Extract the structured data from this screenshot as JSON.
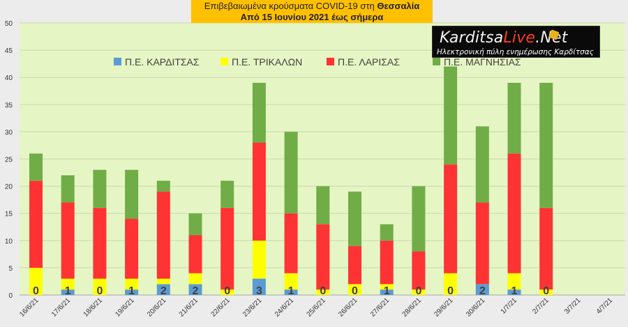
{
  "header": {
    "title_prefix": "Επιβεβαιωμένα κρούσματα COVID-19 στη ",
    "title_region": "Θεσσαλία",
    "subtitle": "Από 15 Ιουνίου 2021 έως σήμερα"
  },
  "logo": {
    "name_part1": "Karditsa",
    "name_part2": "Live",
    "name_part3": ".Net",
    "tagline": "Ηλεκτρονική πύλη ενημέρωσης Καρδίτσας"
  },
  "colors": {
    "Π.Ε. ΚΑΡΔΙΤΣΑΣ": "#5b9bd5",
    "Π.Ε. ΤΡΙΚΑΛΩΝ": "#ffff00",
    "Π.Ε. ΛΑΡΙΣΑΣ": "#ff3333",
    "Π.Ε. ΜΑΓΝΗΣΙΑΣ": "#70ad47",
    "plot_background": "#e6f5c4",
    "page_background": "#ececec",
    "title_background": "#ffc000"
  },
  "chart_data": {
    "type": "bar",
    "stacked": true,
    "ylim": [
      0,
      50
    ],
    "yticks": [
      0,
      5,
      10,
      15,
      20,
      25,
      30,
      35,
      40,
      45,
      50
    ],
    "grid": true,
    "legend_position": "top",
    "categories": [
      "16/6/21",
      "17/6/21",
      "18/6/21",
      "19/6/21",
      "20/6/21",
      "21/6/21",
      "22/6/21",
      "23/6/21",
      "24/6/21",
      "25/6/21",
      "26/6/21",
      "27/6/21",
      "28/6/21",
      "29/6/21",
      "30/6/21",
      "1/7/21",
      "2/7/21",
      "3/7/21",
      "4/7/21"
    ],
    "series": [
      {
        "name": "Π.Ε. ΚΑΡΔΙΤΣΑΣ",
        "values": [
          0,
          1,
          0,
          1,
          2,
          2,
          0,
          3,
          1,
          0,
          0,
          1,
          0,
          0,
          2,
          1,
          0,
          null,
          null
        ]
      },
      {
        "name": "Π.Ε. ΤΡΙΚΑΛΩΝ",
        "values": [
          5,
          2,
          3,
          2,
          1,
          2,
          1,
          7,
          3,
          1,
          2,
          1,
          1,
          4,
          0,
          3,
          1,
          null,
          null
        ]
      },
      {
        "name": "Π.Ε. ΛΑΡΙΣΑΣ",
        "values": [
          16,
          14,
          13,
          11,
          16,
          7,
          15,
          18,
          11,
          12,
          7,
          8,
          7,
          20,
          15,
          22,
          15,
          null,
          null
        ]
      },
      {
        "name": "Π.Ε. ΜΑΓΝΗΣΙΑΣ",
        "values": [
          5,
          5,
          7,
          9,
          2,
          4,
          5,
          11,
          15,
          7,
          10,
          3,
          12,
          18,
          14,
          13,
          23,
          null,
          null
        ]
      }
    ],
    "data_labels": {
      "series": "Π.Ε. ΚΑΡΔΙΤΣΑΣ",
      "values": [
        0,
        1,
        0,
        1,
        2,
        2,
        0,
        3,
        1,
        0,
        0,
        1,
        0,
        0,
        2,
        1,
        0
      ]
    }
  }
}
